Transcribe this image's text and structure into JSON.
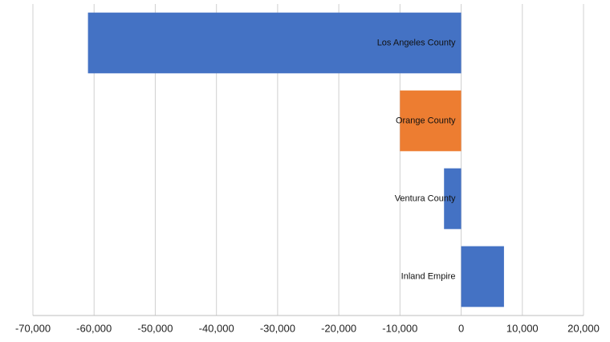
{
  "chart_data": {
    "type": "hbar",
    "categories": [
      "Los Angeles County",
      "Orange County",
      "Ventura County",
      "Inland Empire"
    ],
    "values": [
      -61000,
      -10000,
      -2800,
      7000
    ],
    "colors": [
      "#4472c4",
      "#ed7d31",
      "#4472c4",
      "#4472c4"
    ],
    "xlim": [
      -70000,
      20000
    ],
    "xticks": [
      {
        "value": -70000,
        "label": "-70,000"
      },
      {
        "value": -60000,
        "label": "-60,000"
      },
      {
        "value": -50000,
        "label": "-50,000"
      },
      {
        "value": -40000,
        "label": "-40,000"
      },
      {
        "value": -30000,
        "label": "-30,000"
      },
      {
        "value": -20000,
        "label": "-20,000"
      },
      {
        "value": -10000,
        "label": "-10,000"
      },
      0,
      {
        "value": 10000,
        "label": "10,000"
      },
      {
        "value": 20000,
        "label": "20,000"
      }
    ],
    "grid": true
  }
}
